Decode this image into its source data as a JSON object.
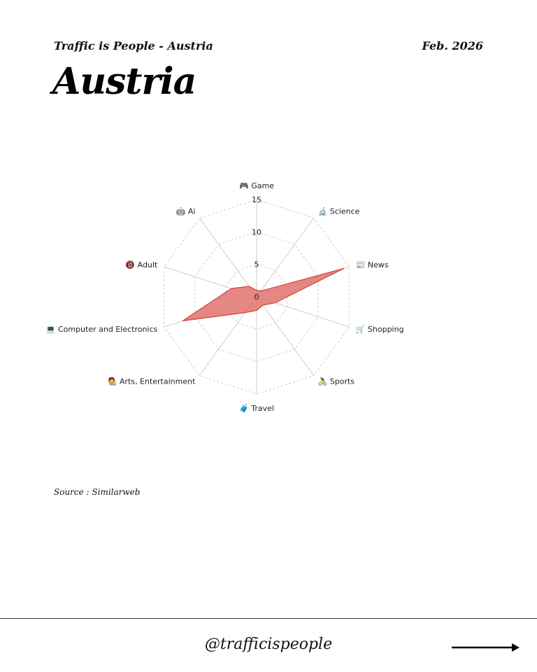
{
  "header": {
    "subtitle": "Traffic is People - Austria",
    "date": "Feb. 2026",
    "title": "Austria"
  },
  "source": "Source : Similarweb",
  "footer": {
    "handle": "@trafficispeople",
    "arrow_icon": "arrow-right-icon"
  },
  "chart_data": {
    "type": "radar",
    "categories": [
      {
        "label": "Game",
        "icon": "🎮"
      },
      {
        "label": "Science",
        "icon": "🔬"
      },
      {
        "label": "News",
        "icon": "📰"
      },
      {
        "label": "Shopping",
        "icon": "🛒"
      },
      {
        "label": "Sports",
        "icon": "🚴‍♀️"
      },
      {
        "label": "Travel",
        "icon": "🧳"
      },
      {
        "label": "Arts, Entertainment",
        "icon": "🧑‍🎨"
      },
      {
        "label": "Computer and Electronics",
        "icon": "💻"
      },
      {
        "label": "Adult",
        "icon": "🔞"
      },
      {
        "label": "Ai",
        "icon": "🤖"
      }
    ],
    "values": [
      1.0,
      1.1,
      14.2,
      3.0,
      1.6,
      2.1,
      3.0,
      12.0,
      4.1,
      2.0
    ],
    "rlim": [
      0,
      15
    ],
    "ticks": [
      "0",
      "5",
      "10",
      "15"
    ],
    "grid": true,
    "fill_color": "#e0736e",
    "line_color": "#d9403a"
  }
}
